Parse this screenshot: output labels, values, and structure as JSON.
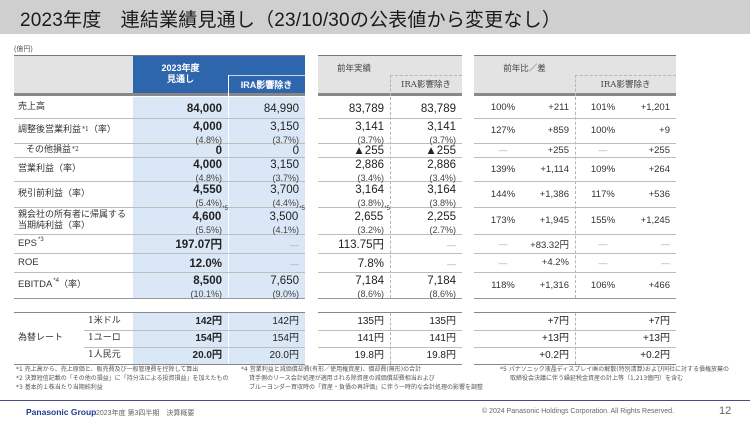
{
  "title": "2023年度　連結業績見通し（23/10/30の公表値から変更なし）",
  "unit": "(億円)",
  "header": {
    "forecast": "2023年度\n見通し",
    "forecast_line1": "2023年度",
    "forecast_line2": "見通し",
    "ira_excl": "IRA影響除き",
    "prev_actual": "前年実績",
    "prev_ira_excl": "IRA影響除き",
    "yoy": "前年比／差",
    "yoy_ira_excl": "IRA影響除き"
  },
  "rows": [
    {
      "label": "売上高",
      "fc": "84,000",
      "fc_ira": "84,990",
      "prev": "83,789",
      "prev_ira": "83,789",
      "yoy_pct": "100%",
      "yoy_diff": "+211",
      "yoy_ira_pct": "101%",
      "yoy_ira_diff": "+1,201"
    },
    {
      "label": "調整後営業利益",
      "label_sup": "*1",
      "label_suffix": "（率）",
      "fc": "4,000",
      "fc_rate": "(4.8%)",
      "fc_ira": "3,150",
      "fc_ira_rate": "(3.7%)",
      "prev": "3,141",
      "prev_rate": "(3.7%)",
      "prev_ira": "3,141",
      "prev_ira_rate": "(3.7%)",
      "yoy_pct": "127%",
      "yoy_diff": "+859",
      "yoy_ira_pct": "100%",
      "yoy_ira_diff": "+9"
    },
    {
      "label": "その他損益",
      "label_sup": "*2",
      "fc": "0",
      "fc_ira": "0",
      "prev": "▲255",
      "prev_ira": "▲255",
      "yoy_pct": "—",
      "yoy_diff": "+255",
      "yoy_ira_pct": "—",
      "yoy_ira_diff": "+255"
    },
    {
      "label": "営業利益（率）",
      "fc": "4,000",
      "fc_rate": "(4.8%)",
      "fc_ira": "3,150",
      "fc_ira_rate": "(3.7%)",
      "prev": "2,886",
      "prev_rate": "(3.4%)",
      "prev_ira": "2,886",
      "prev_ira_rate": "(3.4%)",
      "yoy_pct": "139%",
      "yoy_diff": "+1,114",
      "yoy_ira_pct": "109%",
      "yoy_ira_diff": "+264"
    },
    {
      "label": "税引前利益（率）",
      "fc": "4,550",
      "fc_rate": "(5.4%)",
      "fc_ira": "3,700",
      "fc_ira_rate": "(4.4%)",
      "prev": "3,164",
      "prev_rate": "(3.8%)",
      "prev_ira": "3,164",
      "prev_ira_rate": "(3.8%)",
      "yoy_pct": "144%",
      "yoy_diff": "+1,386",
      "yoy_ira_pct": "117%",
      "yoy_ira_diff": "+536"
    },
    {
      "label": "親会社の所有者に帰属する",
      "label2": "当期純利益（率）",
      "fc": "4,600",
      "fc_sup": "*5",
      "fc_rate": "(5.5%)",
      "fc_ira": "3,500",
      "fc_ira_sup": "*5",
      "fc_ira_rate": "(4.1%)",
      "prev": "2,655",
      "prev_sup": "*5",
      "prev_rate": "(3.2%)",
      "prev_ira": "2,255",
      "prev_ira_rate": "(2.7%)",
      "yoy_pct": "173%",
      "yoy_diff": "+1,945",
      "yoy_ira_pct": "155%",
      "yoy_ira_diff": "+1,245"
    },
    {
      "label": "EPS",
      "label_sup": "*3",
      "fc": "197.07円",
      "fc_ira": "—",
      "prev": "113.75円",
      "prev_ira": "—",
      "yoy_pct": "—",
      "yoy_diff": "+83.32円",
      "yoy_ira_pct": "—",
      "yoy_ira_diff": "—"
    },
    {
      "label": "ROE",
      "fc": "12.0%",
      "fc_ira": "—",
      "prev": "7.8%",
      "prev_ira": "—",
      "yoy_pct": "—",
      "yoy_diff": "+4.2%",
      "yoy_ira_pct": "—",
      "yoy_ira_diff": "—"
    },
    {
      "label": "EBITDA",
      "label_sup": "*4",
      "label_suffix": "（率）",
      "fc": "8,500",
      "fc_rate": "(10.1%)",
      "fc_ira": "7,650",
      "fc_ira_rate": "(9.0%)",
      "prev": "7,184",
      "prev_rate": "(8.6%)",
      "prev_ira": "7,184",
      "prev_ira_rate": "(8.6%)",
      "yoy_pct": "118%",
      "yoy_diff": "+1,316",
      "yoy_ira_pct": "106%",
      "yoy_ira_diff": "+466"
    }
  ],
  "fx": {
    "label": "為替レート",
    "rows": [
      {
        "currency": "1米ドル",
        "fc": "142円",
        "fc_ira": "142円",
        "prev": "135円",
        "prev_ira": "135円",
        "diff": "+7円",
        "diff_ira": "+7円"
      },
      {
        "currency": "1ユーロ",
        "fc": "154円",
        "fc_ira": "154円",
        "prev": "141円",
        "prev_ira": "141円",
        "diff": "+13円",
        "diff_ira": "+13円"
      },
      {
        "currency": "1人民元",
        "fc": "20.0円",
        "fc_ira": "20.0円",
        "prev": "19.8円",
        "prev_ira": "19.8円",
        "diff": "+0.2円",
        "diff_ira": "+0.2円"
      }
    ]
  },
  "footnotes": {
    "n1": "*1  売上高から、売上原価と、販売費及び一般管理費を控除して算出",
    "n2": "*2  決算短信記載の「その他の損益」に「持分法による投資損益」を加えたもの",
    "n3": "*3  基本的１株当たり当期純利益",
    "n4a": "*4  営業利益と減価償却費(有形／使用権資産)、償却費(無形)の合計",
    "n4b": "貸手側のリース会計処理が適用される除資産の減価償却費相当および",
    "n4c": "ブルーヨンダー買収時の「資産・負債の再評価」に伴う一時的な会計処理の影響を調整",
    "n5a": "*5  パナソニック液晶ディスプレイ㈱の解散(特別清算)および同社に対する債権放棄の",
    "n5b": "取締役会決議に伴う繰延税金資産の計上等（1,213億円）を含む"
  },
  "footer": {
    "brand": "Panasonic Group",
    "period": "2023年度 第3四半期　決算概要",
    "copyright": "© 2024 Panasonic Holdings Corporation. All Rights Reserved.",
    "page": "12"
  },
  "colors": {
    "header_blue": "#2e66ad",
    "forecast_bg": "#d9e7f6",
    "header_gray": "#e3e3e3",
    "brand_blue": "#1f3c8c"
  }
}
